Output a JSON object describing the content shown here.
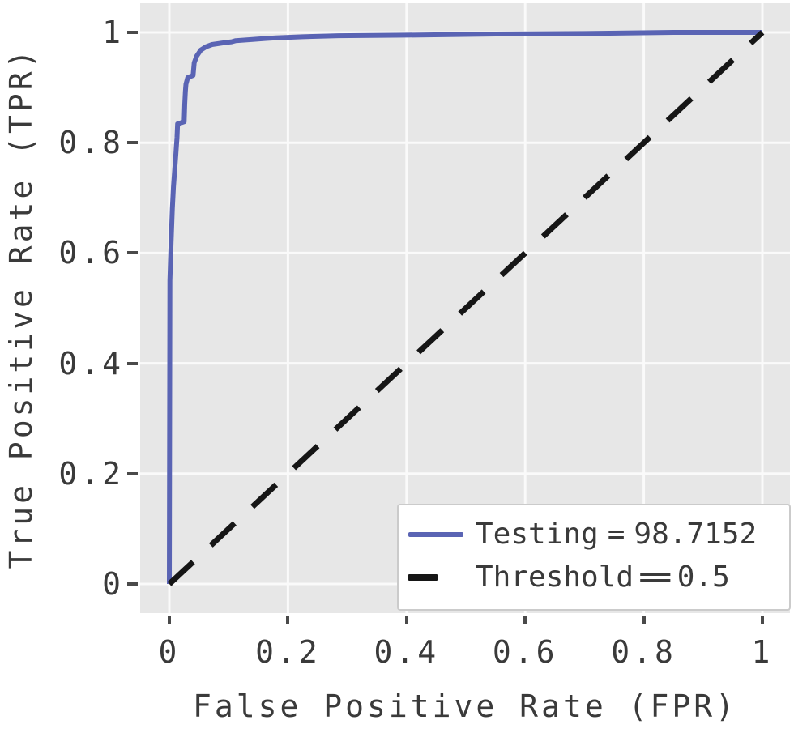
{
  "figure": {
    "background": "#ffffff",
    "panel_background": "#e7e7e7",
    "grid_color": "#fafafa",
    "text_color": "#3a3a3a",
    "tick_color": "#4a4a4a"
  },
  "chart_data": {
    "type": "line",
    "title": "",
    "xlabel": "False Positive Rate (FPR)",
    "ylabel": "True Positive Rate (TPR)",
    "xlim": [
      0,
      1
    ],
    "ylim": [
      0,
      1
    ],
    "grid": true,
    "legend_position": "lower right",
    "x_ticks": [
      "0",
      "0.2",
      "0.4",
      "0.6",
      "0.8",
      "1"
    ],
    "x_tick_values": [
      0,
      0.2,
      0.4,
      0.6,
      0.8,
      1
    ],
    "y_ticks": [
      "0",
      "0.2",
      "0.4",
      "0.6",
      "0.8",
      "1"
    ],
    "y_tick_values": [
      0,
      0.2,
      0.4,
      0.6,
      0.8,
      1
    ],
    "series": [
      {
        "name": "Testing = 98.7152",
        "style": "solid",
        "color": "#5a64b4",
        "points": [
          [
            0.0,
            0.0
          ],
          [
            0.001,
            0.55
          ],
          [
            0.003,
            0.62
          ],
          [
            0.005,
            0.68
          ],
          [
            0.007,
            0.72
          ],
          [
            0.009,
            0.75
          ],
          [
            0.011,
            0.78
          ],
          [
            0.013,
            0.81
          ],
          [
            0.014,
            0.834
          ],
          [
            0.025,
            0.838
          ],
          [
            0.026,
            0.87
          ],
          [
            0.027,
            0.893
          ],
          [
            0.028,
            0.906
          ],
          [
            0.031,
            0.918
          ],
          [
            0.04,
            0.922
          ],
          [
            0.042,
            0.945
          ],
          [
            0.046,
            0.957
          ],
          [
            0.053,
            0.968
          ],
          [
            0.062,
            0.974
          ],
          [
            0.072,
            0.978
          ],
          [
            0.097,
            0.982
          ],
          [
            0.105,
            0.983
          ],
          [
            0.112,
            0.985
          ],
          [
            0.138,
            0.987
          ],
          [
            0.163,
            0.989
          ],
          [
            0.18,
            0.99
          ],
          [
            0.225,
            0.992
          ],
          [
            0.285,
            0.994
          ],
          [
            0.4,
            0.995
          ],
          [
            0.55,
            0.997
          ],
          [
            0.7,
            0.998
          ],
          [
            0.85,
            1.0
          ],
          [
            1.0,
            1.0
          ]
        ]
      },
      {
        "name": "Threshold = 0.5",
        "style": "dashed",
        "color": "#161616",
        "points": [
          [
            0.0,
            0.0
          ],
          [
            1.0,
            1.0
          ]
        ]
      }
    ]
  },
  "legend": {
    "entries": [
      {
        "name": "Testing",
        "separator": "=",
        "value": "98.7152"
      },
      {
        "name": "Threshold",
        "separator": "=",
        "value": "0.5"
      }
    ]
  }
}
